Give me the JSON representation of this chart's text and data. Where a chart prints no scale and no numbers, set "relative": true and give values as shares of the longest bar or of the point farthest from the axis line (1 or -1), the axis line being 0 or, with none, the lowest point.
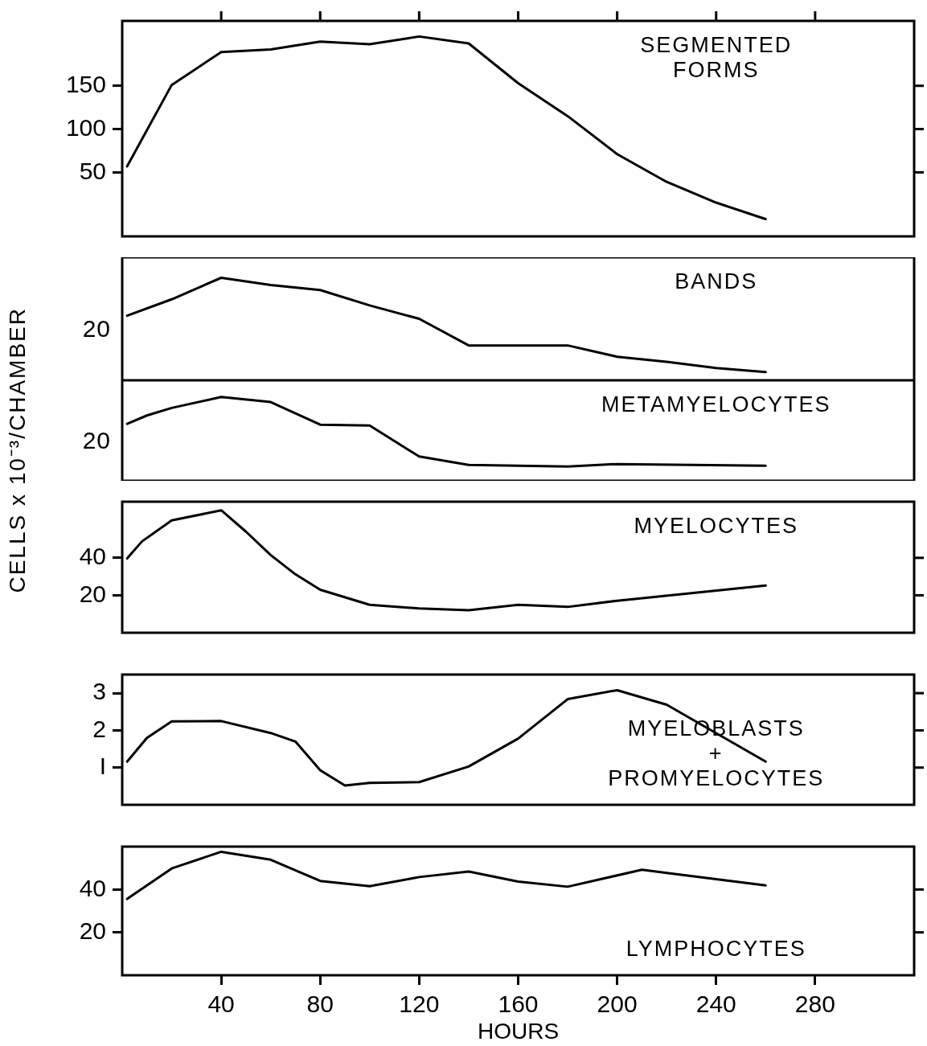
{
  "chart_data": [
    {
      "type": "line",
      "ylabel": "CELLS x 10⁻³/CHAMBER",
      "xlim": [
        0,
        320
      ],
      "xticks": [
        40,
        80,
        120,
        160,
        200,
        240,
        280
      ],
      "ylim": [
        -24,
        225
      ],
      "yticks": [
        50,
        100,
        150
      ],
      "tick_labels": "y",
      "grid": false,
      "legend": "top right",
      "series": [
        {
          "name": "SEGMENTED FORMS",
          "color": "#000000",
          "x": [
            2,
            20,
            40,
            60,
            80,
            100,
            120,
            140,
            160,
            180,
            200,
            220,
            240,
            260
          ],
          "values": [
            57,
            151,
            189,
            192,
            201,
            198,
            207,
            199,
            153,
            115,
            71,
            39,
            15,
            -4
          ]
        }
      ]
    },
    {
      "type": "line",
      "relative": true,
      "tick_labels": false,
      "grid": false,
      "legend": "top right",
      "annotations": [
        "20"
      ],
      "xlim": [
        0,
        320
      ],
      "series": [
        {
          "name": "BANDS",
          "color": "#000000",
          "x": [
            2,
            20,
            40,
            60,
            80,
            100,
            120,
            140,
            160,
            180,
            200,
            220,
            240,
            260
          ],
          "values": [
            0.63,
            0.79,
            1,
            0.93,
            0.88,
            0.73,
            0.6,
            0.34,
            0.34,
            0.34,
            0.23,
            0.18,
            0.12,
            0.08
          ]
        }
      ]
    },
    {
      "type": "line",
      "relative": true,
      "tick_labels": false,
      "grid": false,
      "legend": "top right",
      "annotations": [
        "20"
      ],
      "xlim": [
        0,
        320
      ],
      "series": [
        {
          "name": "METAMYELOCYTES",
          "color": "#000000",
          "x": [
            2,
            10,
            20,
            40,
            60,
            80,
            100,
            120,
            140,
            180,
            200,
            260
          ],
          "values": [
            0.68,
            0.78,
            0.87,
            1,
            0.94,
            0.67,
            0.66,
            0.29,
            0.19,
            0.17,
            0.2,
            0.18
          ]
        }
      ]
    },
    {
      "type": "line",
      "xlim": [
        0,
        320
      ],
      "ylim": [
        0,
        70
      ],
      "yticks": [
        20,
        40
      ],
      "tick_labels": "y",
      "grid": false,
      "legend": "top right",
      "series": [
        {
          "name": "MYELOCYTES",
          "color": "#000000",
          "x": [
            2,
            8,
            20,
            40,
            50,
            60,
            70,
            80,
            100,
            120,
            140,
            160,
            180,
            200,
            260
          ],
          "values": [
            39.7,
            48.8,
            60,
            65.4,
            54,
            41.5,
            31.2,
            23,
            14.9,
            13,
            12,
            14.9,
            13.8,
            17.1,
            25.2
          ]
        }
      ]
    },
    {
      "type": "line",
      "xlim": [
        0,
        320
      ],
      "ylim": [
        0,
        3.5
      ],
      "yticks": [
        {
          "value": 1,
          "label": "I"
        },
        2,
        3
      ],
      "tick_labels": "y",
      "grid": false,
      "legend": "bottom right",
      "series": [
        {
          "name": "MYELOBLASTS + PROMYELOCYTES",
          "color": "#000000",
          "x": [
            2,
            10,
            20,
            40,
            60,
            70,
            80,
            90,
            100,
            120,
            140,
            160,
            180,
            200,
            220,
            260
          ],
          "values": [
            1.16,
            1.8,
            2.24,
            2.25,
            1.93,
            1.7,
            0.93,
            0.52,
            0.59,
            0.61,
            1.03,
            1.78,
            2.84,
            3.08,
            2.69,
            1.16
          ]
        }
      ]
    },
    {
      "type": "line",
      "xlabel": "HOURS",
      "xlim": [
        0,
        320
      ],
      "xticks": [
        40,
        80,
        120,
        160,
        200,
        240,
        280
      ],
      "ylim": [
        0,
        60
      ],
      "yticks": [
        20,
        40
      ],
      "grid": false,
      "legend": "bottom right",
      "series": [
        {
          "name": "LYMPHOCYTES",
          "color": "#000000",
          "x": [
            2,
            20,
            40,
            60,
            80,
            100,
            120,
            140,
            160,
            180,
            210,
            220,
            260
          ],
          "values": [
            35.6,
            49.8,
            57.6,
            53.9,
            44,
            41.5,
            45.8,
            48.4,
            43.7,
            41.3,
            49.2,
            47.7,
            41.9
          ]
        }
      ]
    }
  ]
}
